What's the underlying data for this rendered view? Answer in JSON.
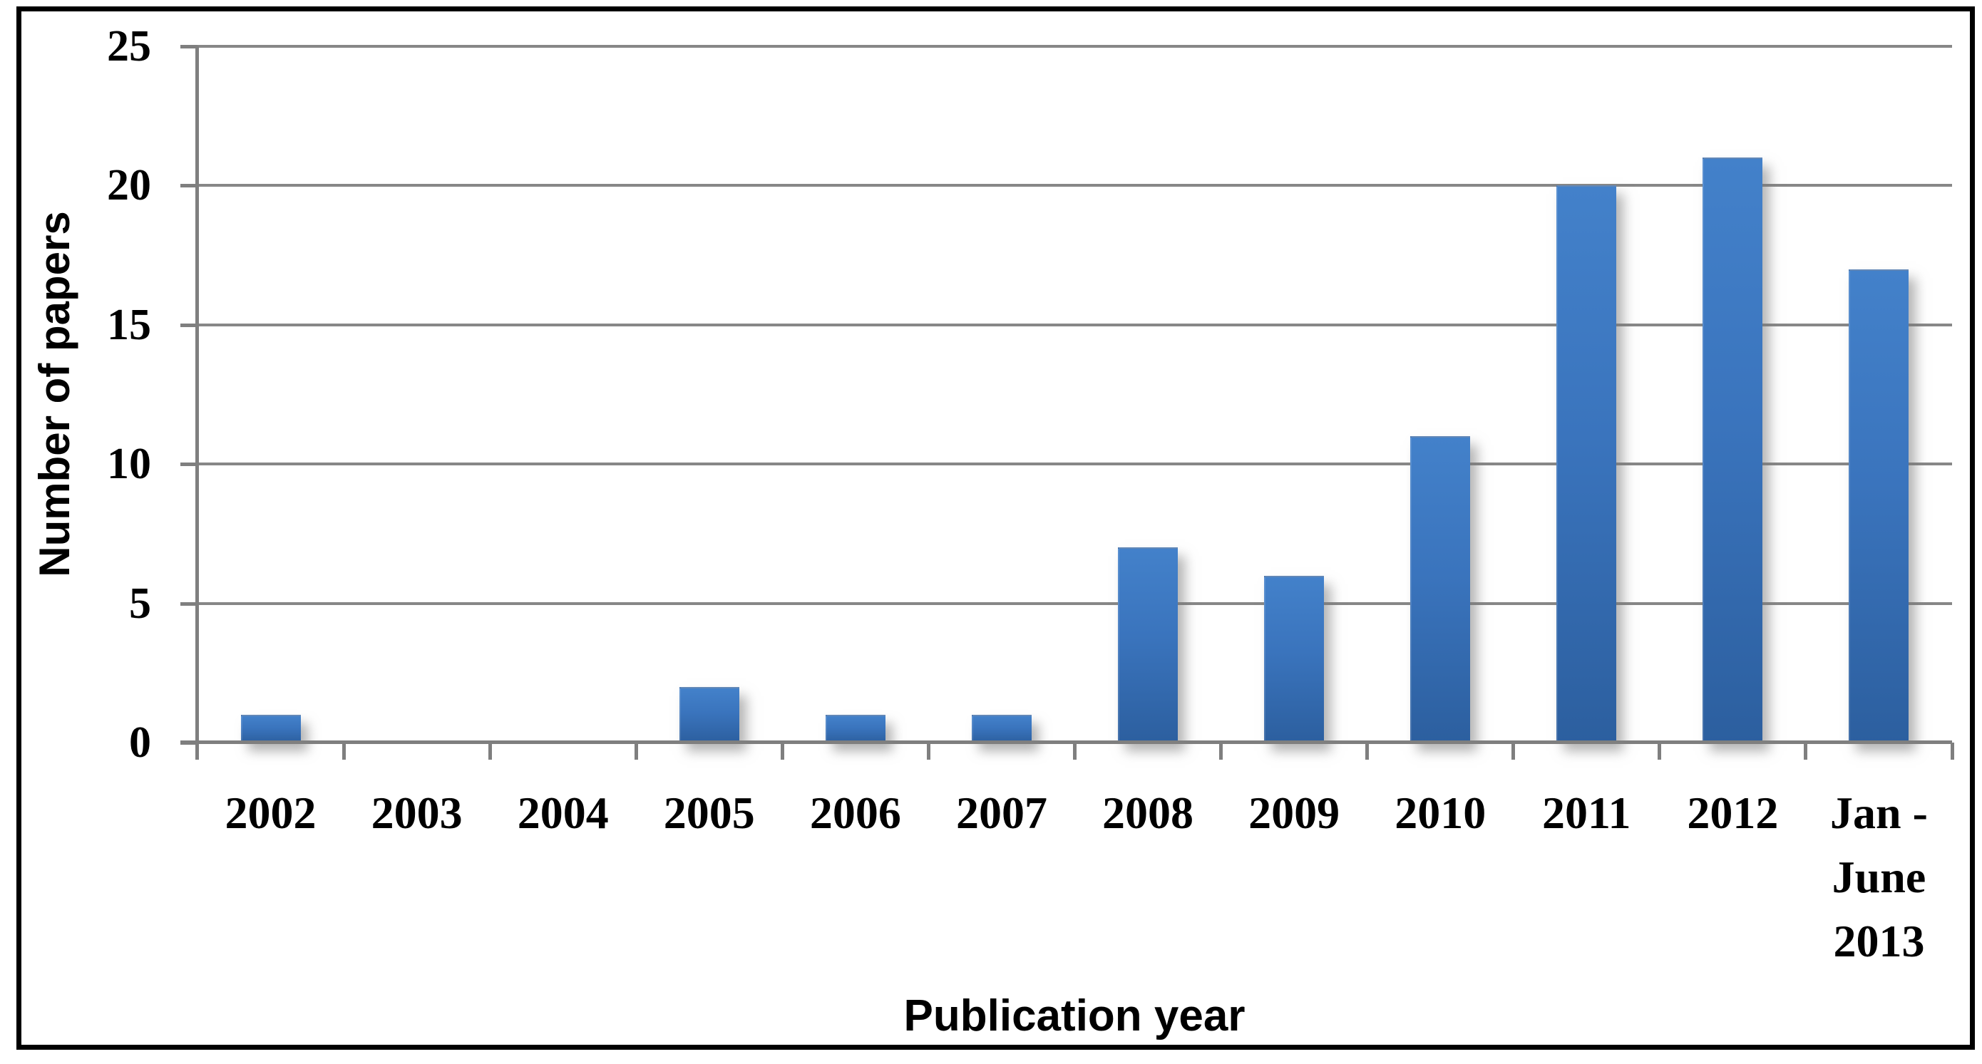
{
  "chart_data": {
    "type": "bar",
    "title": "",
    "categories": [
      "2002",
      "2003",
      "2004",
      "2005",
      "2006",
      "2007",
      "2008",
      "2009",
      "2010",
      "2011",
      "2012",
      "Jan - June 2013"
    ],
    "category_display": [
      "2002",
      "2003",
      "2004",
      "2005",
      "2006",
      "2007",
      "2008",
      "2009",
      "2010",
      "2011",
      "2012",
      "Jan -\nJune\n2013"
    ],
    "values": [
      1,
      0,
      0,
      2,
      1,
      1,
      7,
      6,
      11,
      20,
      21,
      17
    ],
    "xlabel": "Publication year",
    "ylabel": "Number of papers",
    "ylim": [
      0,
      25
    ],
    "yticks": [
      0,
      5,
      10,
      15,
      20,
      25
    ],
    "grid": true,
    "legend": false,
    "bar_color_top": "#4381ca",
    "bar_color_mid": "#3a74bd",
    "bar_color_bottom": "#2c5f9f",
    "gridline_color": "#878787",
    "axis_color": "#7f7f7f",
    "text_color": "#000000",
    "background": "#ffffff",
    "frame_border_color": "#000000"
  }
}
